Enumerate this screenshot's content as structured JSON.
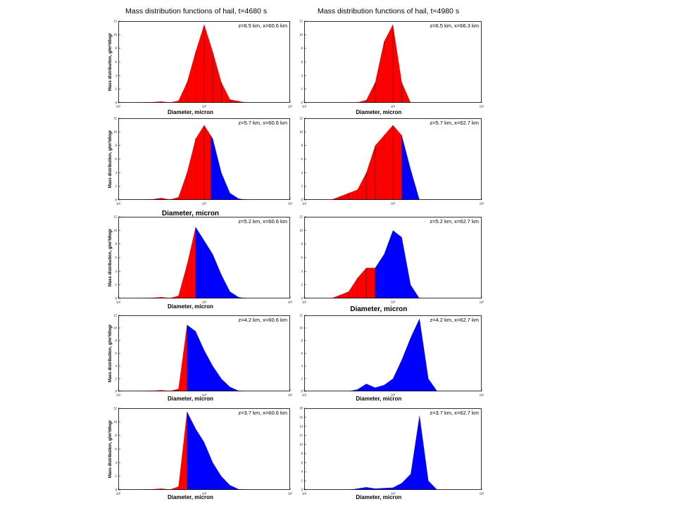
{
  "titles": {
    "left": "Mass  distribution functions of hail, t=4680 s",
    "right": "Mass  distribution functions of hail, t=4980 s"
  },
  "colors": {
    "small_fraction": "#ff0000",
    "large_fraction": "#0000ff",
    "frame": "#000000"
  },
  "chart_data": [
    {
      "type": "area",
      "column": "left",
      "row": 0,
      "annotation": "z=6.5 km, x=60.6 km",
      "xlabel": "Diameter,   micron",
      "ylabel": "Mass distribution,   g/m³/dlogr",
      "xscale": "log",
      "xlim_exp": [
        2,
        6
      ],
      "x_ticks": [
        "10²",
        "10⁴",
        "10⁶"
      ],
      "ylim": [
        0,
        12
      ],
      "y_ticks": [
        "0",
        "2",
        "4",
        "6",
        "8",
        "10",
        "12"
      ],
      "x_exp": [
        2.0,
        2.5,
        2.8,
        3.0,
        3.2,
        3.4,
        3.6,
        3.8,
        4.0,
        4.2,
        4.4,
        4.6,
        5.0,
        6.0
      ],
      "y": [
        0,
        0,
        0.1,
        0.2,
        0.05,
        0.3,
        3,
        7.5,
        11.5,
        7.5,
        3,
        0.5,
        0,
        0
      ],
      "split_exp": 6.0
    },
    {
      "type": "area",
      "column": "right",
      "row": 0,
      "annotation": "z=6.5 km, x=66.3 km",
      "xlabel": "Diameter,   micron",
      "ylabel": "",
      "xscale": "log",
      "xlim_exp": [
        2,
        6
      ],
      "x_ticks": [
        "10²",
        "10⁴",
        "10⁶"
      ],
      "ylim": [
        0,
        12
      ],
      "y_ticks": [
        "0",
        "2",
        "4",
        "6",
        "8",
        "10",
        "12"
      ],
      "x_exp": [
        2.0,
        3.0,
        3.2,
        3.4,
        3.6,
        3.8,
        4.0,
        4.2,
        4.4,
        5.0,
        6.0
      ],
      "y": [
        0,
        0,
        0.05,
        0.4,
        3,
        9,
        11.5,
        3,
        0,
        0,
        0
      ],
      "split_exp": 6.0
    },
    {
      "type": "area",
      "column": "left",
      "row": 1,
      "annotation": "z=5.7 km, x=60.6 km",
      "xlabel": "Diameter,   micron",
      "ylabel": "Mass distribution,   g/m³/dlogr",
      "xscale": "log",
      "xlim_exp": [
        2,
        6
      ],
      "x_ticks": [
        "10²",
        "10⁴",
        "10⁶"
      ],
      "ylim": [
        0,
        12
      ],
      "y_ticks": [
        "0",
        "2",
        "4",
        "6",
        "8",
        "10",
        "12"
      ],
      "x_exp": [
        2.0,
        2.5,
        2.8,
        3.0,
        3.2,
        3.4,
        3.6,
        3.8,
        4.0,
        4.2,
        4.4,
        4.6,
        4.8,
        5.0,
        6.0
      ],
      "y": [
        0,
        0,
        0.1,
        0.3,
        0.05,
        0.4,
        4,
        9,
        11,
        9,
        4,
        1,
        0.2,
        0,
        0
      ],
      "split_exp": 4.15
    },
    {
      "type": "area",
      "column": "right",
      "row": 1,
      "annotation": "z=5.7 km, x=62.7 km",
      "xlabel": "",
      "ylabel": "",
      "xscale": "log",
      "xlim_exp": [
        2,
        6
      ],
      "x_ticks": [
        "10²",
        "10⁴",
        "10⁶"
      ],
      "ylim": [
        0,
        12
      ],
      "y_ticks": [
        "0",
        "2",
        "4",
        "6",
        "8",
        "10",
        "12"
      ],
      "x_exp": [
        2.0,
        2.6,
        2.8,
        3.0,
        3.2,
        3.4,
        3.6,
        3.8,
        4.0,
        4.2,
        4.4,
        4.6,
        6.0
      ],
      "y": [
        0,
        0,
        0.5,
        1,
        1.5,
        4,
        8,
        9.5,
        11,
        9.5,
        4.5,
        0,
        0
      ],
      "split_exp": 4.2
    },
    {
      "type": "area",
      "column": "left",
      "row": 2,
      "annotation": "z=5.2 km, x=60.6 km",
      "xlabel": "Diameter,   micron",
      "ylabel": "Mass distribution,   g/m³/dlogr",
      "xscale": "log",
      "xlim_exp": [
        2,
        6
      ],
      "x_ticks": [
        "10²",
        "10⁴",
        "10⁶"
      ],
      "ylim": [
        0,
        12
      ],
      "y_ticks": [
        "0",
        "2",
        "4",
        "6",
        "8",
        "10",
        "12"
      ],
      "x_exp": [
        2.0,
        2.5,
        2.8,
        3.0,
        3.2,
        3.4,
        3.6,
        3.8,
        4.0,
        4.2,
        4.4,
        4.6,
        4.8,
        5.0,
        6.0
      ],
      "y": [
        0,
        0,
        0.1,
        0.2,
        0.05,
        0.4,
        5,
        10.5,
        8.5,
        6.5,
        3.5,
        1,
        0.2,
        0,
        0
      ],
      "split_exp": 3.8
    },
    {
      "type": "area",
      "column": "right",
      "row": 2,
      "annotation": "z=5.2 km, x=62.7 km",
      "xlabel": "Diameter,   micron",
      "ylabel": "",
      "xscale": "log",
      "xlim_exp": [
        2,
        6
      ],
      "x_ticks": [
        "10²",
        "10⁴",
        "10⁶"
      ],
      "ylim": [
        0,
        12
      ],
      "y_ticks": [
        "0",
        "2",
        "4",
        "6",
        "8",
        "10",
        "12"
      ],
      "x_exp": [
        2.0,
        2.6,
        2.8,
        3.0,
        3.2,
        3.4,
        3.6,
        3.8,
        4.0,
        4.2,
        4.4,
        4.6,
        6.0
      ],
      "y": [
        0,
        0,
        0.5,
        1,
        3,
        4.5,
        4.5,
        6.5,
        10,
        9,
        2,
        0,
        0
      ],
      "split_exp": 3.6
    },
    {
      "type": "area",
      "column": "left",
      "row": 3,
      "annotation": "z=4.2 km, x=60.6 km",
      "xlabel": "Diameter,   micron",
      "ylabel": "Mass distribution,   g/m³/dlogr",
      "xscale": "log",
      "xlim_exp": [
        2,
        6
      ],
      "x_ticks": [
        "10²",
        "10⁴",
        "10⁶"
      ],
      "ylim": [
        0,
        12
      ],
      "y_ticks": [
        "0",
        "2",
        "4",
        "6",
        "8",
        "10",
        "12"
      ],
      "x_exp": [
        2.0,
        2.5,
        2.8,
        3.0,
        3.2,
        3.4,
        3.6,
        3.8,
        4.0,
        4.2,
        4.4,
        4.6,
        4.8,
        5.0,
        6.0
      ],
      "y": [
        0,
        0,
        0.1,
        0.2,
        0.05,
        0.4,
        10.5,
        9.5,
        6.5,
        4,
        2,
        0.7,
        0.1,
        0,
        0
      ],
      "split_exp": 3.6
    },
    {
      "type": "area",
      "column": "right",
      "row": 3,
      "annotation": "z=4.2 km, x=62.7 km",
      "xlabel": "Diameter,   micron",
      "ylabel": "",
      "xscale": "log",
      "xlim_exp": [
        2,
        6
      ],
      "x_ticks": [
        "10²",
        "10⁴",
        "10⁶"
      ],
      "ylim": [
        0,
        12
      ],
      "y_ticks": [
        "0",
        "2",
        "4",
        "6",
        "8",
        "10",
        "12"
      ],
      "x_exp": [
        2.0,
        3.0,
        3.2,
        3.4,
        3.6,
        3.8,
        4.0,
        4.2,
        4.4,
        4.6,
        4.8,
        5.0,
        6.0
      ],
      "y": [
        0,
        0,
        0.3,
        1.2,
        0.6,
        1,
        2,
        5,
        8.5,
        11.5,
        2,
        0,
        0
      ],
      "split_exp": 2.0
    },
    {
      "type": "area",
      "column": "left",
      "row": 4,
      "annotation": "z=3.7 km, x=60.6 km",
      "xlabel": "Diameter,   micron",
      "ylabel": "Mass distribution,   g/m³/dlogr",
      "xscale": "log",
      "xlim_exp": [
        2,
        6
      ],
      "x_ticks": [
        "10²",
        "10⁴",
        "10⁶"
      ],
      "ylim": [
        0,
        12
      ],
      "y_ticks": [
        "0",
        "2",
        "4",
        "6",
        "8",
        "10",
        "12"
      ],
      "x_exp": [
        2.0,
        2.5,
        2.8,
        3.0,
        3.2,
        3.4,
        3.6,
        3.8,
        4.0,
        4.2,
        4.4,
        4.6,
        4.8,
        5.0,
        6.0
      ],
      "y": [
        0,
        0,
        0.1,
        0.2,
        0.05,
        0.5,
        11.5,
        9,
        7,
        4,
        2,
        0.7,
        0.1,
        0,
        0
      ],
      "split_exp": 3.6
    },
    {
      "type": "area",
      "column": "right",
      "row": 4,
      "annotation": "z=3.7 km, x=62.7 km",
      "xlabel": "Diameter,   micron",
      "ylabel": "",
      "xscale": "log",
      "xlim_exp": [
        2,
        6
      ],
      "x_ticks": [
        "10²",
        "10⁴",
        "10⁶"
      ],
      "ylim": [
        0,
        18
      ],
      "y_ticks": [
        "0",
        "2",
        "4",
        "6",
        "8",
        "10",
        "12",
        "14",
        "16",
        "18"
      ],
      "x_exp": [
        2.0,
        3.0,
        3.2,
        3.4,
        3.6,
        3.8,
        4.0,
        4.2,
        4.4,
        4.6,
        4.8,
        5.0,
        6.0
      ],
      "y": [
        0,
        0,
        0.3,
        0.6,
        0.3,
        0.4,
        0.5,
        1.5,
        3.5,
        16.5,
        2,
        0,
        0
      ],
      "split_exp": 2.0
    }
  ]
}
